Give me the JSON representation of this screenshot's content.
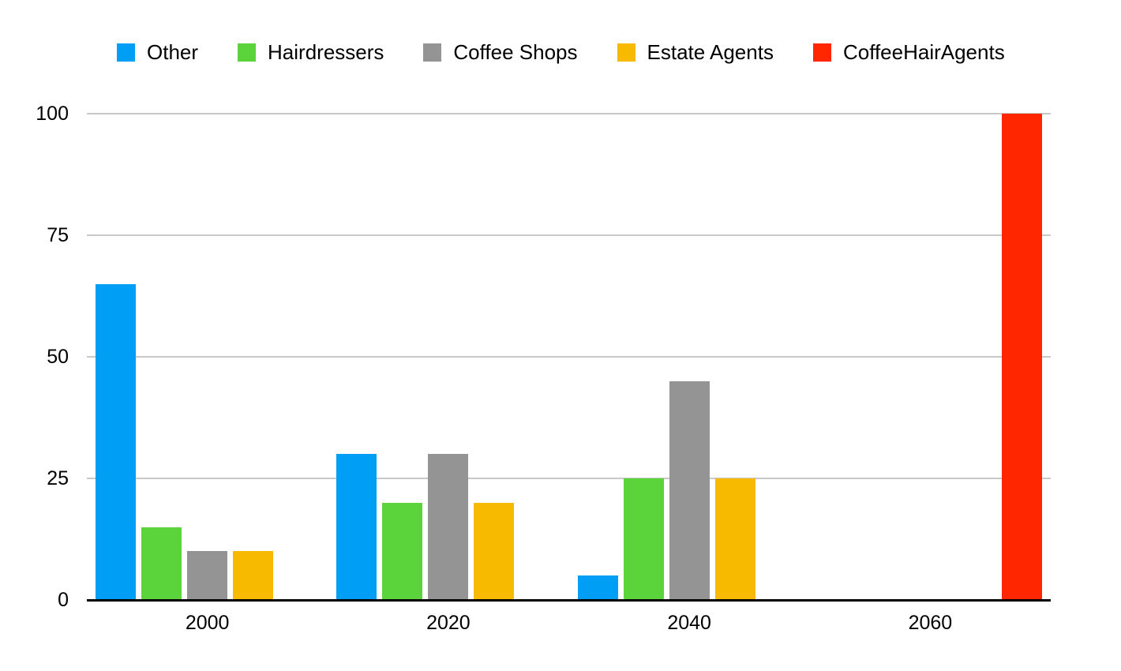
{
  "chart_data": {
    "type": "bar",
    "title": "",
    "categories": [
      "2000",
      "2020",
      "2040",
      "2060"
    ],
    "series": [
      {
        "name": "Other",
        "color": "#009FF5",
        "values": [
          65,
          30,
          5,
          0
        ]
      },
      {
        "name": "Hairdressers",
        "color": "#5BD43B",
        "values": [
          15,
          20,
          25,
          0
        ]
      },
      {
        "name": "Coffee Shops",
        "color": "#949494",
        "values": [
          10,
          30,
          45,
          0
        ]
      },
      {
        "name": "Estate Agents",
        "color": "#F7BA00",
        "values": [
          10,
          20,
          25,
          0
        ]
      },
      {
        "name": "CoffeeHairAgents",
        "color": "#FF2600",
        "values": [
          0,
          0,
          0,
          100
        ]
      }
    ],
    "xlabel": "",
    "ylabel": "",
    "ylim": [
      0,
      100
    ],
    "yticks": [
      0,
      25,
      50,
      75,
      100
    ],
    "grid": true,
    "legend_position": "top",
    "axis_color": "#000000",
    "gridline_color": "#c9c9c9",
    "background_color": "#ffffff"
  }
}
